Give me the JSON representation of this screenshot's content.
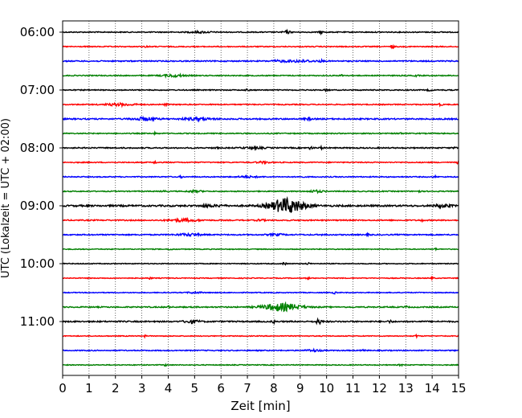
{
  "chart_data": {
    "type": "line",
    "title": "",
    "xlabel": "Zeit  [min]",
    "ylabel": "UTC (Lokalzeit = UTC + 02:00)",
    "xlim": [
      0,
      15
    ],
    "x_ticks": [
      0,
      1,
      2,
      3,
      4,
      5,
      6,
      7,
      8,
      9,
      10,
      11,
      12,
      13,
      14,
      15
    ],
    "y_ticks": [
      {
        "label": "06:00",
        "trace_index": 0
      },
      {
        "label": "07:00",
        "trace_index": 4
      },
      {
        "label": "08:00",
        "trace_index": 8
      },
      {
        "label": "09:00",
        "trace_index": 12
      },
      {
        "label": "10:00",
        "trace_index": 16
      },
      {
        "label": "11:00",
        "trace_index": 20
      }
    ],
    "grid": "vertical dotted",
    "trace_minutes": 15,
    "traces_per_hour": 4,
    "color_cycle": [
      "#000000",
      "#ff0000",
      "#0000ff",
      "#008000"
    ],
    "traces": [
      {
        "start": "06:00",
        "color": "#000000",
        "noise": 0.6,
        "events": [
          [
            5.2,
            0.8,
            0.3
          ],
          [
            8.5,
            1.6,
            0.1
          ],
          [
            9.8,
            1.9,
            0.05
          ]
        ]
      },
      {
        "start": "06:15",
        "color": "#ff0000",
        "noise": 0.6,
        "events": [
          [
            3.2,
            1.0,
            0.05
          ],
          [
            12.5,
            1.6,
            0.05
          ]
        ]
      },
      {
        "start": "06:30",
        "color": "#0000ff",
        "noise": 0.7,
        "events": [
          [
            9.0,
            1.2,
            0.4
          ],
          [
            8.2,
            0.8,
            0.2
          ],
          [
            9.8,
            1.0,
            0.05
          ]
        ]
      },
      {
        "start": "06:45",
        "color": "#008000",
        "noise": 0.6,
        "events": [
          [
            4.2,
            1.4,
            0.3
          ],
          [
            10.6,
            1.0,
            0.05
          ],
          [
            13.4,
            1.2,
            0.05
          ]
        ]
      },
      {
        "start": "07:00",
        "color": "#000000",
        "noise": 0.6,
        "events": [
          [
            7.0,
            1.0,
            0.05
          ],
          [
            10.0,
            1.2,
            0.05
          ],
          [
            13.9,
            1.0,
            0.05
          ]
        ]
      },
      {
        "start": "07:15",
        "color": "#ff0000",
        "noise": 0.6,
        "events": [
          [
            2.2,
            1.4,
            0.4
          ],
          [
            3.9,
            1.0,
            0.05
          ],
          [
            14.3,
            1.4,
            0.05
          ]
        ]
      },
      {
        "start": "07:30",
        "color": "#0000ff",
        "noise": 0.8,
        "events": [
          [
            3.1,
            1.8,
            0.3
          ],
          [
            5.1,
            1.3,
            0.4
          ],
          [
            9.3,
            1.0,
            0.1
          ]
        ]
      },
      {
        "start": "07:45",
        "color": "#008000",
        "noise": 0.6,
        "events": [
          [
            3.5,
            1.0,
            0.05
          ],
          [
            12.8,
            1.0,
            0.05
          ]
        ]
      },
      {
        "start": "08:00",
        "color": "#000000",
        "noise": 0.7,
        "events": [
          [
            5.8,
            1.0,
            0.05
          ],
          [
            7.2,
            0.9,
            0.3
          ],
          [
            9.4,
            1.6,
            0.05
          ],
          [
            9.8,
            1.2,
            0.05
          ],
          [
            14.9,
            1.0,
            0.05
          ]
        ]
      },
      {
        "start": "08:15",
        "color": "#ff0000",
        "noise": 0.6,
        "events": [
          [
            3.5,
            1.0,
            0.05
          ],
          [
            7.6,
            0.9,
            0.2
          ],
          [
            15.0,
            1.6,
            0.05
          ]
        ]
      },
      {
        "start": "08:30",
        "color": "#0000ff",
        "noise": 0.6,
        "events": [
          [
            4.5,
            1.0,
            0.05
          ],
          [
            7.0,
            0.9,
            0.3
          ],
          [
            9.0,
            1.2,
            0.05
          ],
          [
            14.1,
            1.0,
            0.05
          ]
        ]
      },
      {
        "start": "08:45",
        "color": "#008000",
        "noise": 0.6,
        "events": [
          [
            3.8,
            1.2,
            0.05
          ],
          [
            5.0,
            1.0,
            0.2
          ],
          [
            9.6,
            1.2,
            0.2
          ],
          [
            13.5,
            1.0,
            0.05
          ]
        ]
      },
      {
        "start": "09:00",
        "color": "#000000",
        "noise": 1.0,
        "events": [
          [
            8.5,
            9.0,
            0.45
          ],
          [
            5.5,
            1.2,
            0.2
          ],
          [
            6.0,
            1.0,
            0.1
          ],
          [
            14.4,
            1.6,
            0.2
          ]
        ]
      },
      {
        "start": "09:15",
        "color": "#ff0000",
        "noise": 0.7,
        "events": [
          [
            4.6,
            1.4,
            0.4
          ],
          [
            7.5,
            1.0,
            0.1
          ],
          [
            13.6,
            1.0,
            0.05
          ]
        ]
      },
      {
        "start": "09:30",
        "color": "#0000ff",
        "noise": 0.7,
        "events": [
          [
            4.8,
            1.3,
            0.3
          ],
          [
            8.1,
            1.0,
            0.2
          ],
          [
            9.9,
            1.0,
            0.05
          ],
          [
            11.6,
            1.0,
            0.05
          ]
        ]
      },
      {
        "start": "09:45",
        "color": "#008000",
        "noise": 0.5,
        "events": [
          [
            4.1,
            1.0,
            0.05
          ],
          [
            14.1,
            1.0,
            0.05
          ]
        ]
      },
      {
        "start": "10:00",
        "color": "#000000",
        "noise": 0.5,
        "events": [
          [
            8.4,
            1.4,
            0.05
          ],
          [
            9.3,
            1.0,
            0.05
          ]
        ]
      },
      {
        "start": "10:15",
        "color": "#ff0000",
        "noise": 0.5,
        "events": [
          [
            3.3,
            1.0,
            0.05
          ],
          [
            9.3,
            1.0,
            0.05
          ],
          [
            14.0,
            1.0,
            0.05
          ]
        ]
      },
      {
        "start": "10:30",
        "color": "#0000ff",
        "noise": 0.5,
        "events": [
          [
            10.3,
            1.2,
            0.05
          ],
          [
            5.0,
            0.8,
            0.2
          ]
        ]
      },
      {
        "start": "10:45",
        "color": "#008000",
        "noise": 0.7,
        "events": [
          [
            8.3,
            4.5,
            0.5
          ],
          [
            4.0,
            1.2,
            0.05
          ],
          [
            13.0,
            1.0,
            0.05
          ]
        ]
      },
      {
        "start": "11:00",
        "color": "#000000",
        "noise": 0.8,
        "events": [
          [
            4.9,
            1.8,
            0.2
          ],
          [
            8.0,
            1.4,
            0.05
          ],
          [
            9.7,
            2.8,
            0.08
          ],
          [
            12.4,
            1.4,
            0.05
          ]
        ]
      },
      {
        "start": "11:15",
        "color": "#ff0000",
        "noise": 0.5,
        "events": [
          [
            3.1,
            1.0,
            0.05
          ],
          [
            13.4,
            1.4,
            0.05
          ]
        ]
      },
      {
        "start": "11:30",
        "color": "#0000ff",
        "noise": 0.6,
        "events": [
          [
            9.5,
            1.2,
            0.2
          ],
          [
            11.4,
            1.0,
            0.05
          ]
        ]
      },
      {
        "start": "11:45",
        "color": "#008000",
        "noise": 0.5,
        "events": [
          [
            3.9,
            1.0,
            0.05
          ],
          [
            12.8,
            1.0,
            0.05
          ]
        ]
      }
    ]
  }
}
